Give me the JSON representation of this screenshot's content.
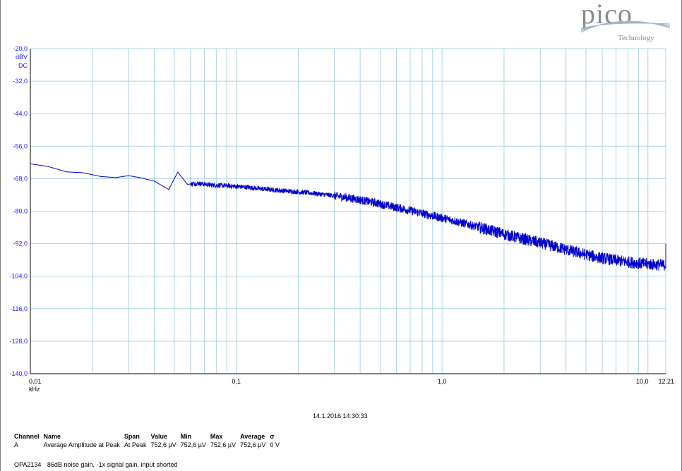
{
  "logo": {
    "word": "pico",
    "sub": "Technology"
  },
  "chart_data": {
    "type": "line",
    "x_scale": "log",
    "xlim": [
      0.01,
      12.21
    ],
    "ylim": [
      -140,
      -20
    ],
    "y_ticks": [
      "-20,0",
      "-32,0",
      "-44,0",
      "-56,0",
      "-68,0",
      "-80,0",
      "-92,0",
      "-104,0",
      "-116,0",
      "-128,0",
      "-140,0"
    ],
    "y_tick_values": [
      -20,
      -32,
      -44,
      -56,
      -68,
      -80,
      -92,
      -104,
      -116,
      -128,
      -140
    ],
    "y_unit": "dBV",
    "y_coupling": "DC",
    "x_ticks": [
      "0,01",
      "0,1",
      "1,0",
      "10,0",
      "12,21"
    ],
    "x_tick_values": [
      0.01,
      0.1,
      1.0,
      10.0,
      12.21
    ],
    "x_unit": "kHz",
    "grid": true,
    "series": [
      {
        "color": "#0000cc",
        "x": [
          0.01,
          0.0122,
          0.015,
          0.018,
          0.022,
          0.026,
          0.03,
          0.034,
          0.04,
          0.047,
          0.052,
          0.058,
          0.065,
          0.075,
          0.09,
          0.11,
          0.14,
          0.18,
          0.23,
          0.3,
          0.38,
          0.5,
          0.65,
          0.85,
          1.0,
          1.3,
          1.7,
          2.2,
          2.8,
          3.5,
          4.5,
          5.5,
          7.0,
          9.0,
          11.0,
          12.0,
          12.21
        ],
        "y": [
          -62.5,
          -63.5,
          -65.5,
          -65.8,
          -67.2,
          -67.6,
          -66.9,
          -67.6,
          -68.9,
          -72.0,
          -65.6,
          -70.1,
          -69.7,
          -70.3,
          -70.6,
          -71.1,
          -71.9,
          -72.6,
          -73.3,
          -74.3,
          -75.5,
          -77.3,
          -79.2,
          -81.3,
          -82.5,
          -84.6,
          -87.0,
          -89.3,
          -91.2,
          -93.0,
          -95.2,
          -96.8,
          -98.2,
          -99.2,
          -99.8,
          -99.9,
          -99.5
        ]
      }
    ]
  },
  "timestamp": "14.1.2016 14:30:33",
  "measurements": {
    "headers": [
      "Channel",
      "Name",
      "Span",
      "Value",
      "Min",
      "Max",
      "Average",
      "σ"
    ],
    "rows": [
      [
        "A",
        "Average Amplitude at Peak",
        "At Peak",
        "752,6 µV",
        "752,6 µV",
        "752,6 µV",
        "752,6 µV",
        "0 V"
      ]
    ]
  },
  "notes": {
    "device": "OPA2134",
    "description": "86dB noise gain, -1x signal gain, input shorted"
  }
}
